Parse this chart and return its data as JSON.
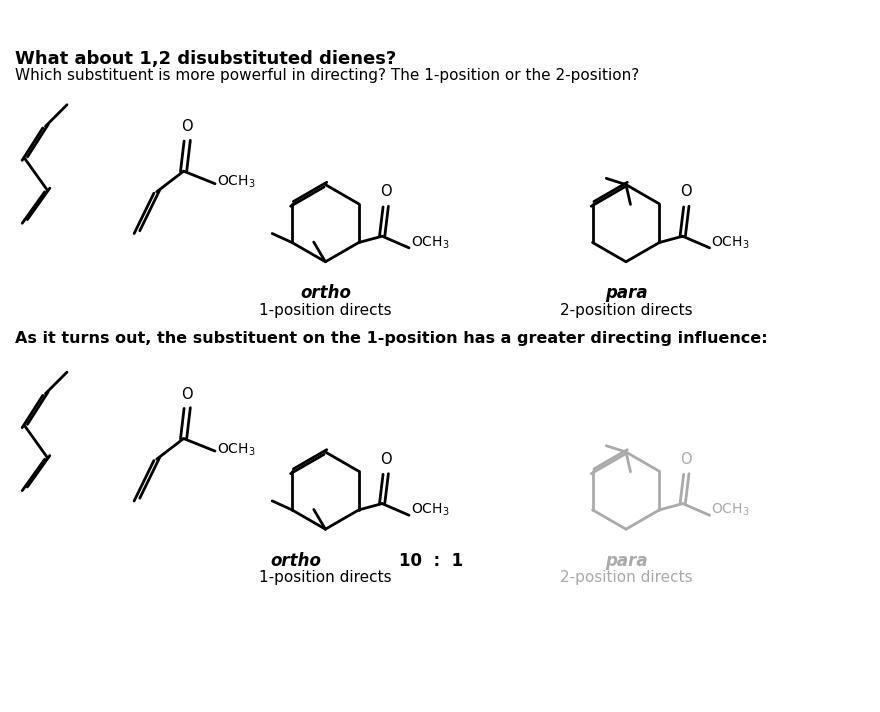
{
  "title_bold": "What about 1,2 disubstituted dienes?",
  "subtitle": "Which substituent is more powerful in directing? The 1-position or the 2-position?",
  "label_ortho": "ortho",
  "label_para": "para",
  "label_1pos": "1-position directs",
  "label_2pos": "2-position directs",
  "bottom_bold": "As it turns out, the substituent on the 1-position has a greater directing influence:",
  "label_ortho2": "ortho",
  "label_ratio": "10  :  1",
  "label_para2": "para",
  "label_1pos2": "1-position directs",
  "label_2pos2": "2-position directs",
  "black": "#000000",
  "gray": "#aaaaaa",
  "bg": "#ffffff"
}
